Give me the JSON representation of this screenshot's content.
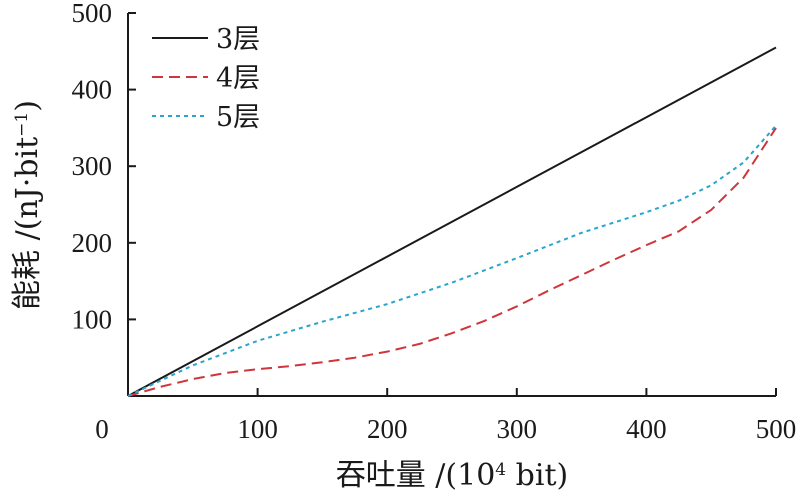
{
  "chart_data": {
    "type": "line",
    "xlabel": {
      "prefix": "吞吐量 /(10",
      "sup": "4",
      "suffix": " bit)"
    },
    "ylabel": {
      "prefix": "能耗 /(nJ·bit",
      "sup": "−1",
      "suffix": ")"
    },
    "xlim": [
      0,
      500
    ],
    "ylim": [
      0,
      500
    ],
    "xticks": [
      "0",
      "100",
      "200",
      "300",
      "400",
      "500"
    ],
    "yticks": [
      "100",
      "200",
      "300",
      "400",
      "500"
    ],
    "grid": false,
    "legend_position": "top-left",
    "series": [
      {
        "name": "3层",
        "style": "solid",
        "color": "#1a1a1a",
        "points": [
          [
            0,
            0
          ],
          [
            100,
            91
          ],
          [
            200,
            182
          ],
          [
            300,
            273
          ],
          [
            400,
            364
          ],
          [
            500,
            455
          ]
        ]
      },
      {
        "name": "4层",
        "style": "dashed",
        "color": "#d0353b",
        "points": [
          [
            0,
            0
          ],
          [
            25,
            12
          ],
          [
            50,
            22
          ],
          [
            75,
            30
          ],
          [
            100,
            35
          ],
          [
            125,
            39
          ],
          [
            150,
            44
          ],
          [
            175,
            50
          ],
          [
            200,
            58
          ],
          [
            225,
            68
          ],
          [
            250,
            82
          ],
          [
            275,
            98
          ],
          [
            300,
            117
          ],
          [
            325,
            138
          ],
          [
            350,
            158
          ],
          [
            375,
            178
          ],
          [
            400,
            197
          ],
          [
            425,
            215
          ],
          [
            450,
            243
          ],
          [
            475,
            285
          ],
          [
            500,
            350
          ]
        ]
      },
      {
        "name": "5层",
        "style": "dotted",
        "color": "#2aa5cc",
        "points": [
          [
            0,
            0
          ],
          [
            50,
            40
          ],
          [
            100,
            72
          ],
          [
            150,
            97
          ],
          [
            200,
            120
          ],
          [
            250,
            148
          ],
          [
            300,
            180
          ],
          [
            350,
            213
          ],
          [
            400,
            240
          ],
          [
            425,
            255
          ],
          [
            450,
            275
          ],
          [
            475,
            305
          ],
          [
            500,
            353
          ]
        ]
      }
    ]
  }
}
